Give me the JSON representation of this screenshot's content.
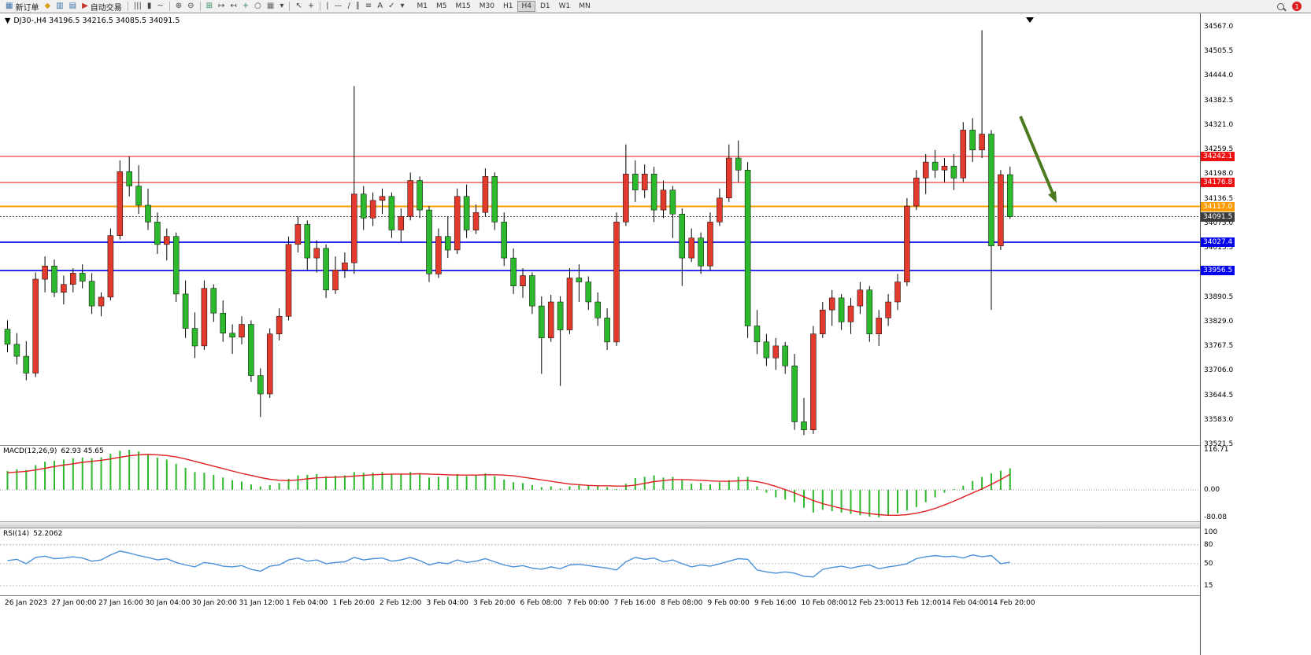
{
  "toolbar": {
    "items": [
      {
        "name": "new-order-button",
        "glyph": "▦",
        "color": "#3a6ea5",
        "label": "新订单"
      },
      {
        "name": "market-watch-icon",
        "glyph": "◆",
        "color": "#d9a21b"
      },
      {
        "name": "chart-window-icon",
        "glyph": "▥",
        "color": "#3a6ea5"
      },
      {
        "name": "data-window-icon",
        "glyph": "▤",
        "color": "#3a6ea5"
      },
      {
        "name": "algo-trading-button",
        "glyph": "▶",
        "color": "#c0392b",
        "label": "自动交易"
      },
      {
        "sep": true
      },
      {
        "name": "bar-chart-mode-icon",
        "glyph": "|||",
        "color": "#444"
      },
      {
        "name": "candle-chart-mode-icon",
        "glyph": "▮",
        "color": "#444"
      },
      {
        "name": "line-chart-mode-icon",
        "glyph": "~",
        "color": "#444"
      },
      {
        "sep": true
      },
      {
        "name": "zoom-in-icon",
        "glyph": "⊕",
        "color": "#444"
      },
      {
        "name": "zoom-out-icon",
        "glyph": "⊖",
        "color": "#444"
      },
      {
        "sep": true
      },
      {
        "name": "tile-windows-icon",
        "glyph": "⊞",
        "color": "#2e8b57"
      },
      {
        "name": "auto-scroll-icon",
        "glyph": "↦",
        "color": "#444"
      },
      {
        "name": "chart-shift-icon",
        "glyph": "↤",
        "color": "#444"
      },
      {
        "name": "new-chart-icon",
        "glyph": "+",
        "color": "#2e8b57"
      },
      {
        "name": "period-clock-icon",
        "glyph": "○",
        "color": "#444"
      },
      {
        "name": "history-center-icon",
        "glyph": "▦",
        "color": "#666"
      },
      {
        "name": "indicators-dropdown-caret",
        "glyph": "▾",
        "color": "#444"
      },
      {
        "sep": true
      },
      {
        "name": "cursor-icon",
        "glyph": "↖",
        "color": "#444"
      },
      {
        "name": "crosshair-icon",
        "glyph": "+",
        "color": "#444"
      },
      {
        "sep": true
      },
      {
        "name": "vertical-line-icon",
        "glyph": "|",
        "color": "#444"
      },
      {
        "name": "horizontal-line-icon",
        "glyph": "—",
        "color": "#444"
      },
      {
        "name": "trendline-icon",
        "glyph": "/",
        "color": "#444"
      },
      {
        "name": "channel-icon",
        "glyph": "∥",
        "color": "#444"
      },
      {
        "name": "fibonacci-icon",
        "glyph": "≡",
        "color": "#444"
      },
      {
        "name": "text-label-icon",
        "glyph": "A",
        "color": "#444"
      },
      {
        "name": "arrows-tool-icon",
        "glyph": "✓",
        "color": "#444"
      },
      {
        "name": "shapes-dropdown-caret",
        "glyph": "▾",
        "color": "#444"
      }
    ],
    "timeframes": [
      "M1",
      "M5",
      "M15",
      "M30",
      "H1",
      "H4",
      "D1",
      "W1",
      "MN"
    ],
    "active_timeframe": "H4",
    "notification_count": "1"
  },
  "chart": {
    "header": "DJ30-,H4 34196.5 34216.5 34085.5 34091.5",
    "collapse_glyph": "▼",
    "symbol": "DJ30-",
    "timeframe": "H4",
    "ohlc": {
      "open": "34196.5",
      "high": "34216.5",
      "low": "34085.5",
      "close": "34091.5"
    },
    "price_ticks": [
      "34567.0",
      "34505.5",
      "34444.0",
      "34382.5",
      "34321.0",
      "34259.5",
      "34198.0",
      "34136.5",
      "34075.0",
      "34013.5",
      "33952.0",
      "33890.5",
      "33829.0",
      "33767.5",
      "33706.0",
      "33644.5",
      "33583.0",
      "33521.5"
    ],
    "hlines": [
      {
        "price": 34242.1,
        "label": "34242.1",
        "color": "#ee1111",
        "width": 1,
        "tag_bg": "#ee1111"
      },
      {
        "price": 34176.8,
        "label": "34176.8",
        "color": "#ee1111",
        "width": 1,
        "tag_bg": "#ee1111"
      },
      {
        "price": 34117.0,
        "label": "34117.0",
        "color": "#ff9c00",
        "width": 2,
        "tag_bg": "#ff9c00"
      },
      {
        "price": 34091.5,
        "label": "34091.5",
        "color": "#444444",
        "width": 1,
        "dash": "2,2",
        "tag_bg": "#3c3c3c"
      },
      {
        "price": 34027.4,
        "label": "34027.4",
        "color": "#0000ee",
        "width": 1.6,
        "tag_bg": "#0000ee"
      },
      {
        "price": 33956.5,
        "label": "33956.5",
        "color": "#0000ee",
        "width": 1.6,
        "tag_bg": "#0000ee"
      }
    ],
    "annotation_arrow": {
      "color": "#4b7a1f"
    },
    "colors": {
      "up": "#e23b2e",
      "down": "#2db92d",
      "wick": "#000000"
    },
    "time_labels": [
      "26 Jan 2023",
      "27 Jan 00:00",
      "27 Jan 16:00",
      "30 Jan 04:00",
      "30 Jan 20:00",
      "31 Jan 12:00",
      "1 Feb 04:00",
      "1 Feb 20:00",
      "2 Feb 12:00",
      "3 Feb 04:00",
      "3 Feb 20:00",
      "6 Feb 08:00",
      "7 Feb 00:00",
      "7 Feb 16:00",
      "8 Feb 08:00",
      "9 Feb 00:00",
      "9 Feb 16:00",
      "10 Feb 08:00",
      "12 Feb 23:00",
      "13 Feb 12:00",
      "14 Feb 04:00",
      "14 Feb 20:00"
    ]
  },
  "indicators": {
    "macd": {
      "title": "MACD(12,26,9)",
      "values": "62.93 45.65",
      "scale": [
        "116.71",
        "0.00",
        "-80.08"
      ],
      "histogram_color": "#2db92d",
      "signal_color": "#e02020"
    },
    "rsi": {
      "title": "RSI(14)",
      "value": "52.2062",
      "scale": [
        "100",
        "80",
        "50",
        "15"
      ],
      "levels": [
        80,
        50,
        15
      ],
      "line_color": "#4a90d9"
    }
  },
  "chart_data": {
    "type": "candlestick",
    "symbol": "DJ30-",
    "timeframe": "H4",
    "up_color_meaning": "red = bullish, green = bearish",
    "price_range": [
      33520,
      34600
    ],
    "candles": [
      [
        33810,
        33832,
        33752,
        33772
      ],
      [
        33772,
        33800,
        33722,
        33742
      ],
      [
        33742,
        33780,
        33682,
        33700
      ],
      [
        33700,
        33952,
        33690,
        33935
      ],
      [
        33935,
        33992,
        33902,
        33968
      ],
      [
        33968,
        33984,
        33890,
        33902
      ],
      [
        33902,
        33944,
        33872,
        33922
      ],
      [
        33922,
        33962,
        33902,
        33950
      ],
      [
        33950,
        33972,
        33912,
        33930
      ],
      [
        33930,
        33950,
        33848,
        33868
      ],
      [
        33868,
        33902,
        33842,
        33890
      ],
      [
        33890,
        34062,
        33882,
        34044
      ],
      [
        34044,
        34232,
        34034,
        34204
      ],
      [
        34204,
        34242,
        34142,
        34168
      ],
      [
        34168,
        34220,
        34098,
        34120
      ],
      [
        34120,
        34162,
        34058,
        34078
      ],
      [
        34078,
        34102,
        33998,
        34022
      ],
      [
        34022,
        34062,
        33982,
        34042
      ],
      [
        34042,
        34052,
        33878,
        33898
      ],
      [
        33898,
        33932,
        33788,
        33812
      ],
      [
        33812,
        33852,
        33738,
        33768
      ],
      [
        33768,
        33932,
        33758,
        33912
      ],
      [
        33912,
        33922,
        33828,
        33850
      ],
      [
        33850,
        33882,
        33778,
        33800
      ],
      [
        33800,
        33822,
        33748,
        33790
      ],
      [
        33790,
        33842,
        33772,
        33822
      ],
      [
        33822,
        33832,
        33678,
        33694
      ],
      [
        33694,
        33712,
        33590,
        33648
      ],
      [
        33648,
        33812,
        33638,
        33798
      ],
      [
        33798,
        33862,
        33782,
        33842
      ],
      [
        33842,
        34042,
        33832,
        34022
      ],
      [
        34022,
        34092,
        34002,
        34072
      ],
      [
        34072,
        34082,
        33958,
        33988
      ],
      [
        33988,
        34032,
        33952,
        34012
      ],
      [
        34012,
        34022,
        33888,
        33908
      ],
      [
        33908,
        33992,
        33898,
        33958
      ],
      [
        33958,
        34002,
        33938,
        33976
      ],
      [
        33976,
        34418,
        33948,
        34148
      ],
      [
        34148,
        34168,
        34058,
        34088
      ],
      [
        34088,
        34152,
        34068,
        34132
      ],
      [
        34132,
        34162,
        34098,
        34142
      ],
      [
        34142,
        34152,
        34038,
        34058
      ],
      [
        34058,
        34112,
        34028,
        34092
      ],
      [
        34092,
        34202,
        34082,
        34182
      ],
      [
        34182,
        34192,
        34088,
        34108
      ],
      [
        34108,
        34118,
        33928,
        33948
      ],
      [
        33948,
        34062,
        33938,
        34042
      ],
      [
        34042,
        34092,
        33988,
        34008
      ],
      [
        34008,
        34162,
        33998,
        34142
      ],
      [
        34142,
        34172,
        34038,
        34058
      ],
      [
        34058,
        34122,
        34048,
        34102
      ],
      [
        34102,
        34212,
        34092,
        34192
      ],
      [
        34192,
        34202,
        34058,
        34078
      ],
      [
        34078,
        34102,
        33968,
        33988
      ],
      [
        33988,
        34012,
        33898,
        33918
      ],
      [
        33918,
        33962,
        33888,
        33944
      ],
      [
        33944,
        33952,
        33848,
        33868
      ],
      [
        33868,
        33892,
        33698,
        33788
      ],
      [
        33788,
        33896,
        33778,
        33878
      ],
      [
        33878,
        33892,
        33668,
        33808
      ],
      [
        33808,
        33962,
        33798,
        33938
      ],
      [
        33938,
        33972,
        33878,
        33928
      ],
      [
        33928,
        33942,
        33858,
        33878
      ],
      [
        33878,
        33902,
        33818,
        33838
      ],
      [
        33838,
        33862,
        33758,
        33778
      ],
      [
        33778,
        34102,
        33768,
        34078
      ],
      [
        34078,
        34272,
        34068,
        34198
      ],
      [
        34198,
        34232,
        34128,
        34158
      ],
      [
        34158,
        34222,
        34138,
        34198
      ],
      [
        34198,
        34216,
        34078,
        34108
      ],
      [
        34108,
        34182,
        34088,
        34158
      ],
      [
        34158,
        34168,
        34038,
        34098
      ],
      [
        34098,
        34112,
        33918,
        33988
      ],
      [
        33988,
        34062,
        33978,
        34038
      ],
      [
        34038,
        34052,
        33948,
        33968
      ],
      [
        33968,
        34102,
        33958,
        34078
      ],
      [
        34078,
        34162,
        34068,
        34138
      ],
      [
        34138,
        34272,
        34128,
        34238
      ],
      [
        34238,
        34282,
        34178,
        34208
      ],
      [
        34208,
        34228,
        33788,
        33818
      ],
      [
        33818,
        33858,
        33748,
        33778
      ],
      [
        33778,
        33798,
        33718,
        33738
      ],
      [
        33738,
        33788,
        33708,
        33768
      ],
      [
        33768,
        33778,
        33698,
        33718
      ],
      [
        33718,
        33748,
        33558,
        33578
      ],
      [
        33578,
        33638,
        33545,
        33558
      ],
      [
        33558,
        33818,
        33548,
        33798
      ],
      [
        33798,
        33878,
        33788,
        33858
      ],
      [
        33858,
        33908,
        33818,
        33888
      ],
      [
        33888,
        33898,
        33808,
        33828
      ],
      [
        33828,
        33888,
        33798,
        33868
      ],
      [
        33868,
        33928,
        33848,
        33908
      ],
      [
        33908,
        33918,
        33778,
        33798
      ],
      [
        33798,
        33858,
        33768,
        33838
      ],
      [
        33838,
        33898,
        33818,
        33878
      ],
      [
        33878,
        33948,
        33858,
        33928
      ],
      [
        33928,
        34138,
        33918,
        34118
      ],
      [
        34118,
        34208,
        34108,
        34188
      ],
      [
        34188,
        34248,
        34148,
        34228
      ],
      [
        34228,
        34258,
        34188,
        34208
      ],
      [
        34208,
        34238,
        34178,
        34218
      ],
      [
        34218,
        34248,
        34158,
        34188
      ],
      [
        34188,
        34328,
        34178,
        34308
      ],
      [
        34308,
        34338,
        34228,
        34258
      ],
      [
        34258,
        34558,
        34238,
        34298
      ],
      [
        34298,
        34308,
        33858,
        34018
      ],
      [
        34018,
        34208,
        34008,
        34196.5
      ],
      [
        34196.5,
        34216.5,
        34085.5,
        34091.5
      ]
    ],
    "macd": {
      "range": [
        -80.08,
        116.71
      ],
      "histogram": [
        55,
        60,
        58,
        72,
        82,
        85,
        88,
        92,
        94,
        92,
        95,
        105,
        114,
        116.7,
        112,
        104,
        94,
        88,
        76,
        64,
        52,
        50,
        44,
        36,
        28,
        24,
        16,
        10,
        14,
        20,
        32,
        42,
        44,
        46,
        40,
        41,
        42,
        52,
        50,
        50,
        52,
        46,
        46,
        52,
        48,
        36,
        38,
        38,
        46,
        40,
        42,
        48,
        40,
        30,
        22,
        20,
        14,
        8,
        10,
        4,
        10,
        14,
        13,
        12,
        8,
        2,
        18,
        34,
        38,
        42,
        36,
        38,
        28,
        18,
        20,
        16,
        22,
        28,
        38,
        38,
        10,
        -8,
        -22,
        -28,
        -36,
        -52,
        -66,
        -58,
        -62,
        -66,
        -70,
        -74,
        -78,
        -80,
        -74,
        -68,
        -60,
        -50,
        -36,
        -22,
        -8,
        2,
        12,
        26,
        38,
        48,
        56,
        62.93
      ],
      "signal": [
        50,
        52,
        54,
        58,
        63,
        68,
        72,
        76,
        80,
        83,
        86,
        90,
        95,
        99,
        102,
        103,
        102,
        100,
        96,
        90,
        83,
        76,
        69,
        62,
        55,
        48,
        42,
        36,
        31,
        28,
        27,
        29,
        32,
        35,
        36,
        37,
        38,
        40,
        42,
        44,
        45,
        46,
        46,
        46,
        47,
        46,
        45,
        44,
        43,
        43,
        43,
        44,
        44,
        43,
        41,
        37,
        33,
        29,
        25,
        21,
        17,
        15,
        13,
        12,
        12,
        11,
        11,
        14,
        19,
        24,
        27,
        30,
        30,
        29,
        28,
        26,
        25,
        25,
        26,
        27,
        24,
        18,
        10,
        1,
        -9,
        -20,
        -31,
        -40,
        -47,
        -54,
        -60,
        -65,
        -69,
        -72,
        -74,
        -74,
        -72,
        -68,
        -62,
        -54,
        -44,
        -33,
        -21,
        -9,
        3,
        16,
        30,
        45.65
      ]
    },
    "rsi": {
      "range": [
        0,
        100
      ],
      "values": [
        55,
        57,
        50,
        60,
        62,
        58,
        59,
        61,
        59,
        54,
        56,
        64,
        70,
        67,
        63,
        60,
        56,
        58,
        52,
        48,
        45,
        52,
        50,
        46,
        45,
        47,
        41,
        38,
        46,
        48,
        56,
        59,
        54,
        56,
        50,
        52,
        53,
        60,
        56,
        58,
        59,
        54,
        56,
        60,
        55,
        48,
        52,
        50,
        56,
        52,
        54,
        58,
        53,
        48,
        45,
        47,
        43,
        41,
        45,
        42,
        48,
        49,
        47,
        45,
        43,
        40,
        53,
        60,
        57,
        59,
        53,
        56,
        50,
        45,
        48,
        46,
        50,
        54,
        58,
        57,
        40,
        37,
        35,
        37,
        35,
        30,
        29,
        41,
        44,
        46,
        43,
        46,
        48,
        42,
        45,
        47,
        50,
        58,
        61,
        63,
        61,
        62,
        59,
        64,
        61,
        63,
        50,
        52.21
      ]
    }
  }
}
